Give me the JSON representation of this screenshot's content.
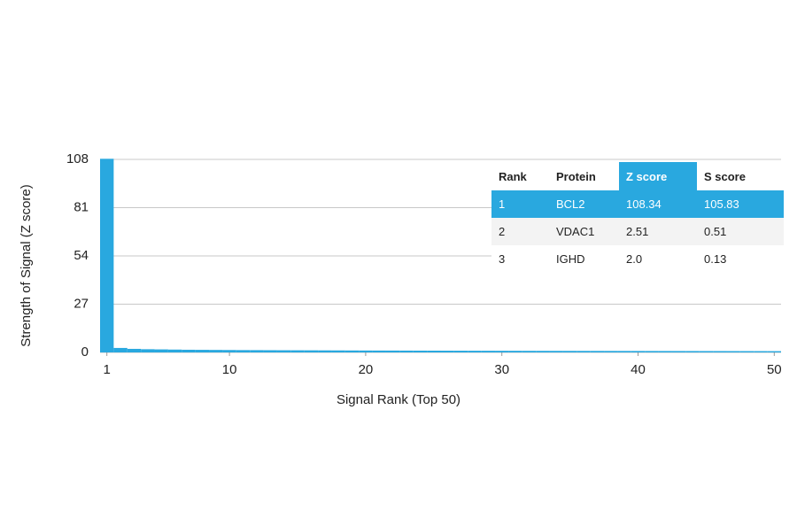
{
  "chart_data": {
    "type": "bar",
    "x_label": "Signal Rank (Top 50)",
    "y_label": "Strength of Signal (Z score)",
    "x": [
      1,
      2,
      3,
      4,
      5,
      6,
      7,
      8,
      9,
      10,
      11,
      12,
      13,
      14,
      15,
      16,
      17,
      18,
      19,
      20,
      21,
      22,
      23,
      24,
      25,
      26,
      27,
      28,
      29,
      30,
      31,
      32,
      33,
      34,
      35,
      36,
      37,
      38,
      39,
      40,
      41,
      42,
      43,
      44,
      45,
      46,
      47,
      48,
      49,
      50
    ],
    "values": [
      108.34,
      2.51,
      2.0,
      1.8,
      1.7,
      1.6,
      1.5,
      1.45,
      1.4,
      1.35,
      1.3,
      1.28,
      1.25,
      1.22,
      1.2,
      1.18,
      1.15,
      1.13,
      1.1,
      1.08,
      1.06,
      1.05,
      1.03,
      1.01,
      1.0,
      0.98,
      0.97,
      0.95,
      0.94,
      0.93,
      0.92,
      0.9,
      0.89,
      0.88,
      0.87,
      0.86,
      0.85,
      0.84,
      0.83,
      0.82,
      0.81,
      0.8,
      0.79,
      0.78,
      0.77,
      0.76,
      0.75,
      0.74,
      0.73,
      0.72
    ],
    "color": "#29a8df",
    "xlim": [
      0.5,
      50.5
    ],
    "xticks": [
      1,
      10,
      20,
      30,
      40,
      50
    ],
    "ylim": [
      0,
      108
    ],
    "yticks": [
      0,
      27,
      54,
      81,
      108
    ],
    "grid": true
  },
  "table": {
    "columns": [
      "Rank",
      "Protein",
      "Z score",
      "S score"
    ],
    "rows": [
      [
        "1",
        "BCL2",
        "108.34",
        "105.83"
      ],
      [
        "2",
        "VDAC1",
        "2.51",
        "0.51"
      ],
      [
        "3",
        "IGHD",
        "2.0",
        "0.13"
      ]
    ]
  }
}
